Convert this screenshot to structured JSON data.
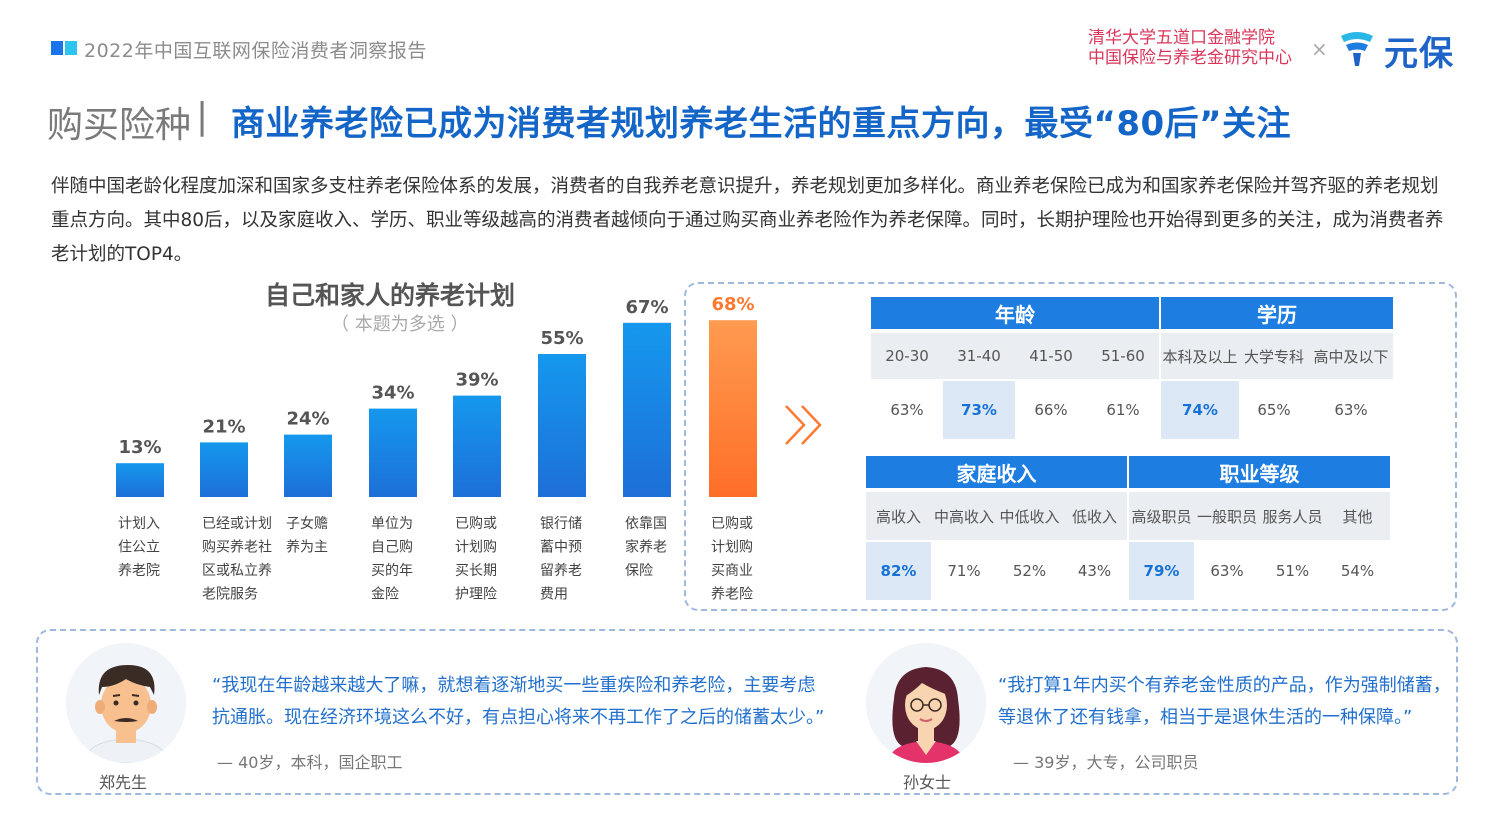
{
  "header": {
    "report_title": "2022年中国互联网保险消费者洞察报告",
    "org_line1": "清华大学五道口金融学院",
    "org_line2": "中国保险与养老金研究中心",
    "times": "×",
    "logo_text": "元保",
    "logo_icon": "yuanbao-logo-icon",
    "accent_color": "#1465c8",
    "org_color": "#d9365a"
  },
  "section_label": "购买险种",
  "separator": "|",
  "headline": "商业养老险已成为消费者规划养老生活的重点方向，最受“80后”关注",
  "paragraph": "伴随中国老龄化程度加深和国家多支柱养老保险体系的发展，消费者的自我养老意识提升，养老规划更加多样化。商业养老保险已成为和国家养老保险并驾齐驱的养老规划重点方向。其中80后，以及家庭收入、学历、职业等级越高的消费者越倾向于通过购买商业养老险作为养老保障。同时，长期护理险也开始得到更多的关注，成为消费者养老计划的TOP4。",
  "chart_data": {
    "type": "bar",
    "title": "自己和家人的养老计划",
    "subtitle": "（ 本题为多选 ）",
    "categories": [
      "计划入住公立养老院",
      "已经或计划购买养老社区或私立养老院服务",
      "子女赡养为主",
      "单位为自己购买的年金险",
      "已购或计划购买长期护理险",
      "银行储蓄中预留养老费用",
      "依靠国家养老保险",
      "已购或计划购买商业养老险"
    ],
    "label_lines": [
      [
        "计划入",
        "住公立",
        "养老院"
      ],
      [
        "已经或计划",
        "购买养老社",
        "区或私立养",
        "老院服务"
      ],
      [
        "子女赡",
        "养为主"
      ],
      [
        "单位为",
        "自己购",
        "买的年",
        "金险"
      ],
      [
        "已购或",
        "计划购",
        "买长期",
        "护理险"
      ],
      [
        "银行储",
        "蓄中预",
        "留养老",
        "费用"
      ],
      [
        "依靠国",
        "家养老",
        "保险"
      ],
      [
        "已购或",
        "计划购",
        "买商业",
        "养老险"
      ]
    ],
    "values": [
      13,
      21,
      24,
      34,
      39,
      55,
      67,
      68
    ],
    "value_labels": [
      "13%",
      "21%",
      "24%",
      "34%",
      "39%",
      "55%",
      "67%",
      "68%"
    ],
    "highlight_index": 7,
    "colors": {
      "bar": "#1a8be8",
      "highlight": "#ff7a30"
    },
    "ylim": [
      0,
      70
    ]
  },
  "tables": {
    "top": {
      "groups": [
        {
          "title": "年龄",
          "columns": [
            "20-30",
            "31-40",
            "41-50",
            "51-60"
          ],
          "values": [
            "63%",
            "73%",
            "66%",
            "61%"
          ],
          "highlight": 1
        },
        {
          "title": "学历",
          "columns": [
            "本科及以上",
            "大学专科",
            "高中及以下"
          ],
          "values": [
            "74%",
            "65%",
            "63%"
          ],
          "highlight": 0
        }
      ]
    },
    "bottom": {
      "groups": [
        {
          "title": "家庭收入",
          "columns": [
            "高收入",
            "中高收入",
            "中低收入",
            "低收入"
          ],
          "values": [
            "82%",
            "71%",
            "52%",
            "43%"
          ],
          "highlight": 0
        },
        {
          "title": "职业等级",
          "columns": [
            "高级职员",
            "一般职员",
            "服务人员",
            "其他"
          ],
          "values": [
            "79%",
            "63%",
            "51%",
            "54%"
          ],
          "highlight": 0
        }
      ]
    }
  },
  "testimonials": [
    {
      "name": "郑先生",
      "quote_line1": "“我现在年龄越来越大了嘛，就想着逐渐地买一些重疾险和养老险，主要考虑",
      "quote_line2": "抗通胀。现在经济环境这么不好，有点担心将来不再工作了之后的储蓄太少。”",
      "cite": "— 40岁，本科，国企职工",
      "avatar_icon": "man-avatar-icon"
    },
    {
      "name": "孙女士",
      "quote_line1": "“我打算1年内买个有养老金性质的产品，作为强制储蓄，",
      "quote_line2": "等退休了还有钱拿，相当于是退休生活的一种保障。”",
      "cite": "— 39岁，大专，公司职员",
      "avatar_icon": "woman-avatar-icon"
    }
  ]
}
